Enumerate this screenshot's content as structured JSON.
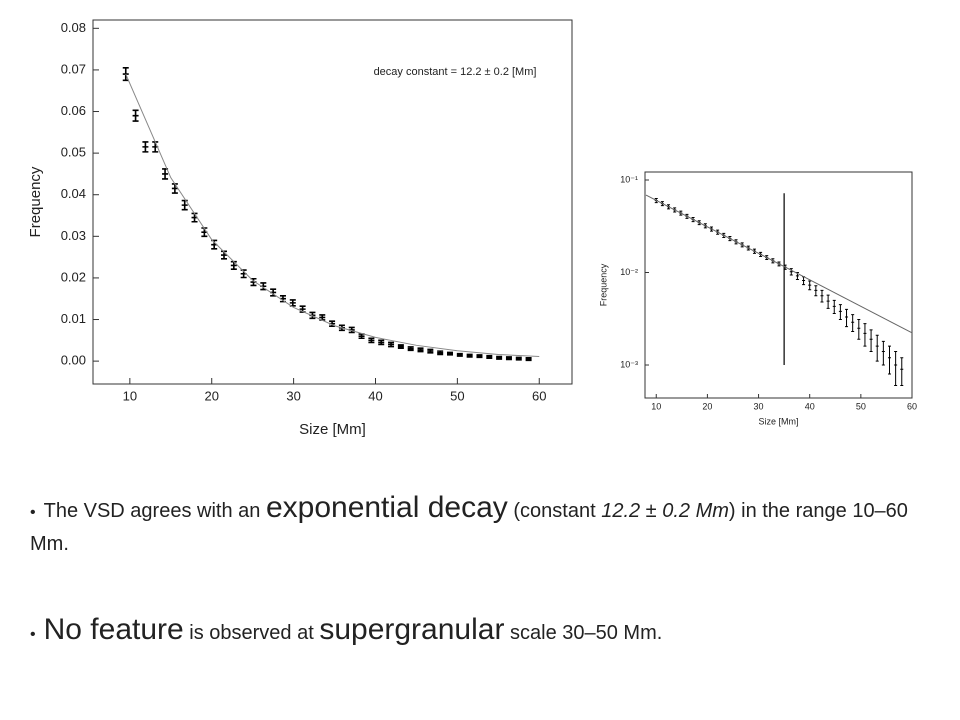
{
  "chart_data": [
    {
      "type": "errorbar",
      "xlabel": "Size [Mm]",
      "ylabel": "Frequency",
      "annotation": "decay constant = 12.2 ± 0.2 [Mm]",
      "xlim": [
        5.5,
        64
      ],
      "ylim": [
        -0.0055,
        0.082
      ],
      "xticks": [
        10,
        20,
        30,
        40,
        50,
        60
      ],
      "yticks": [
        {
          "value": 0,
          "label": "0.00"
        },
        0.01,
        0.02,
        0.03,
        0.04,
        0.05,
        0.06,
        0.07,
        0.08
      ],
      "log_y": false,
      "grid": false,
      "series": [
        {
          "color": "#000000",
          "x": [
            9.5,
            10.7,
            11.9,
            13.1,
            14.3,
            15.5,
            16.7,
            17.9,
            19.1,
            20.3,
            21.5,
            22.7,
            23.9,
            25.1,
            26.3,
            27.5,
            28.7,
            29.9,
            31.1,
            32.3,
            33.5,
            34.7,
            35.9,
            37.1,
            38.3,
            39.5,
            40.7,
            41.9,
            43.1,
            44.3,
            45.5,
            46.7,
            47.9,
            49.1,
            50.3,
            51.5,
            52.7,
            53.9,
            55.1,
            56.3,
            57.5,
            58.7
          ],
          "values": [
            0.069,
            0.059,
            0.0515,
            0.0515,
            0.045,
            0.0415,
            0.0375,
            0.0345,
            0.031,
            0.028,
            0.0255,
            0.023,
            0.021,
            0.019,
            0.018,
            0.0165,
            0.015,
            0.014,
            0.0125,
            0.011,
            0.0105,
            0.009,
            0.008,
            0.0075,
            0.006,
            0.005,
            0.0045,
            0.004,
            0.0035,
            0.003,
            0.0027,
            0.0024,
            0.002,
            0.0018,
            0.0015,
            0.0013,
            0.0012,
            0.001,
            0.0008,
            0.0007,
            0.0006,
            0.0005
          ],
          "errors": [
            0.0015,
            0.0013,
            0.0012,
            0.0012,
            0.0012,
            0.0011,
            0.0011,
            0.001,
            0.001,
            0.001,
            0.0009,
            0.0009,
            0.0009,
            0.0008,
            0.0008,
            0.0008,
            0.0007,
            0.0007,
            0.0007,
            0.0007,
            0.0006,
            0.0006,
            0.0006,
            0.0006,
            0.0005,
            0.0005,
            0.0005,
            0.0005,
            0.0004,
            0.0004,
            0.0004,
            0.0004,
            0.0004,
            0.0003,
            0.0003,
            0.0003,
            0.0003,
            0.0003,
            0.0003,
            0.0003,
            0.0003,
            0.0003
          ]
        },
        {
          "color": "#888888",
          "x": [
            9.5,
            15,
            20,
            25,
            30,
            35,
            40,
            45,
            50,
            55,
            60
          ],
          "values": [
            0.069,
            0.0441,
            0.0292,
            0.0194,
            0.0129,
            0.0085,
            0.0057,
            0.0038,
            0.0025,
            0.0016,
            0.0011
          ]
        }
      ]
    },
    {
      "type": "errorbar",
      "xlabel": "Size [Mm]",
      "ylabel": "Frequency",
      "xlim": [
        7.8,
        60
      ],
      "ylim": [
        0.00044,
        0.122
      ],
      "xticks": [
        10,
        20,
        30,
        40,
        50,
        60
      ],
      "yticks": [
        {
          "value": 0.001,
          "label": "10⁻³"
        },
        {
          "value": 0.01,
          "label": "10⁻²"
        },
        {
          "value": 0.1,
          "label": "10⁻¹"
        }
      ],
      "log_y": true,
      "grid": false,
      "vline": {
        "x": 35,
        "range": [
          0.001,
          0.072
        ]
      },
      "series": [
        {
          "color": "#000000",
          "x": [
            10,
            11.2,
            12.4,
            13.6,
            14.8,
            16,
            17.2,
            18.4,
            19.6,
            20.8,
            22,
            23.2,
            24.4,
            25.6,
            26.8,
            28,
            29.2,
            30.4,
            31.6,
            32.8,
            34,
            35.2,
            36.4,
            37.6,
            38.8,
            40,
            41.2,
            42.4,
            43.6,
            44.8,
            46,
            47.2,
            48.4,
            49.6,
            50.8,
            52,
            53.2,
            54.4,
            55.6,
            56.8,
            58
          ],
          "values": [
            0.06,
            0.0556,
            0.0514,
            0.0475,
            0.0439,
            0.0405,
            0.0374,
            0.0346,
            0.032,
            0.0295,
            0.0273,
            0.0252,
            0.0233,
            0.0215,
            0.0199,
            0.0184,
            0.017,
            0.0157,
            0.0145,
            0.0134,
            0.0124,
            0.0114,
            0.0102,
            0.0092,
            0.0082,
            0.0073,
            0.0064,
            0.0056,
            0.0049,
            0.0043,
            0.0038,
            0.0033,
            0.0029,
            0.0025,
            0.0022,
            0.0019,
            0.0016,
            0.0014,
            0.0012,
            0.001,
            0.0009
          ],
          "errors": [
            0.003,
            0.0028,
            0.0026,
            0.0024,
            0.0022,
            0.002,
            0.0019,
            0.0017,
            0.0016,
            0.0015,
            0.0014,
            0.0013,
            0.0012,
            0.0011,
            0.001,
            0.0009,
            0.0009,
            0.0008,
            0.0007,
            0.0007,
            0.0006,
            0.0006,
            0.0008,
            0.0008,
            0.0008,
            0.0008,
            0.0008,
            0.0008,
            0.0008,
            0.0007,
            0.0007,
            0.0007,
            0.0006,
            0.0006,
            0.0006,
            0.0005,
            0.0005,
            0.0004,
            0.0004,
            0.0004,
            0.0003
          ]
        },
        {
          "color": "#666666",
          "x": [
            8,
            60
          ],
          "values": [
            0.0687,
            0.00223
          ]
        }
      ]
    }
  ],
  "bullets": [
    {
      "runs": [
        "The VSD agrees with an ",
        "exponential decay",
        " (constant ",
        "12.2 ± 0.2 Mm",
        ") in the range 10–60 Mm."
      ]
    },
    {
      "runs": [
        "No feature",
        " is observed at ",
        "supergranular",
        " scale 30–50 Mm."
      ]
    }
  ]
}
